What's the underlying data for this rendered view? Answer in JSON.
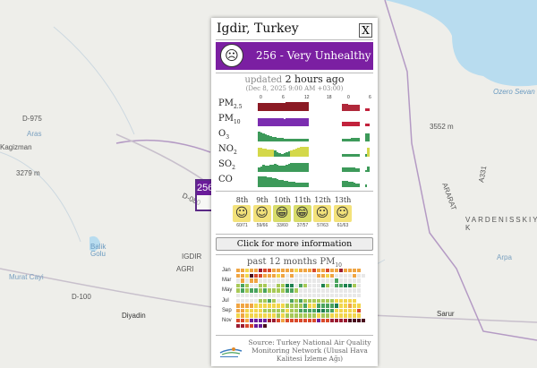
{
  "map": {
    "labels": [
      "Kagizman",
      "3279 m",
      "Balik Golu",
      "IGDIR",
      "AGRI",
      "Murat Cayi",
      "D-100",
      "Diyadin",
      "Ozero Sevan",
      "3552 m",
      "ARARAT",
      "VARDENISSKIY K",
      "Arpa",
      "Sarur",
      "A331",
      "Aras",
      "D-080",
      "D-975"
    ],
    "marker_value": "256",
    "marker_color": "#6a1b9a"
  },
  "popup": {
    "title": "Igdir, Turkey",
    "close_label": "X",
    "aqi_value": "256",
    "aqi_text": "256 - Very Unhealthy",
    "aqi_color": "#7b1fa2",
    "face_icon": "angry-face-icon",
    "updated_prefix": "updated",
    "updated_time": "2 hours ago",
    "updated_date": "(Dec 8, 2025 9:00 AM +03:00)",
    "hour_ticks": [
      "0",
      "6",
      "12",
      "18",
      "0",
      "6"
    ],
    "pollutants": [
      {
        "name": "PM",
        "sub": "2.5",
        "bars": "8888888888888888888888______________77777777__66"
      },
      {
        "name": "PM",
        "sub": "10",
        "bars": "9999999999999999999999______________66666666__66"
      },
      {
        "name": "O",
        "sub": "3",
        "bars": "2222222222222222222222______________22222222__22"
      },
      {
        "name": "NO",
        "sub": "2",
        "bars": "4444444222222244444444______________22222222__24"
      },
      {
        "name": "SO",
        "sub": "2",
        "bars": "2222222222222222222222______________22222222__22"
      },
      {
        "name": "CO",
        "sub": "",
        "bars": "2222222222222222222222______________22222222__2_"
      }
    ],
    "o_heights": {
      "PM2.5": [
        9,
        9,
        9,
        9,
        9,
        9,
        9,
        9,
        9,
        9,
        9,
        9,
        10,
        10,
        10,
        10,
        10,
        10,
        10,
        10,
        10,
        10,
        0,
        0,
        0,
        0,
        0,
        0,
        0,
        0,
        0,
        0,
        0,
        0,
        0,
        0,
        8,
        8,
        8,
        7,
        7,
        7,
        7,
        7,
        0,
        0,
        3,
        3
      ],
      "PM10": [
        9,
        9,
        9,
        9,
        9,
        9,
        9,
        9,
        9,
        9,
        9,
        8,
        9,
        9,
        9,
        9,
        9,
        9,
        9,
        9,
        9,
        9,
        0,
        0,
        0,
        0,
        0,
        0,
        0,
        0,
        0,
        0,
        0,
        0,
        0,
        0,
        5,
        5,
        5,
        5,
        5,
        5,
        5,
        5,
        0,
        0,
        3,
        3
      ],
      "O3": [
        11,
        10,
        9,
        8,
        7,
        6,
        5,
        5,
        4,
        4,
        4,
        3,
        3,
        3,
        3,
        3,
        3,
        3,
        3,
        3,
        3,
        3,
        0,
        0,
        0,
        0,
        0,
        0,
        0,
        0,
        0,
        0,
        0,
        0,
        0,
        0,
        3,
        3,
        3,
        3,
        4,
        4,
        4,
        4,
        0,
        0,
        9,
        9
      ],
      "NO2": [
        10,
        10,
        9,
        9,
        8,
        8,
        8,
        7,
        5,
        4,
        3,
        4,
        5,
        6,
        7,
        8,
        9,
        10,
        11,
        11,
        11,
        11,
        0,
        0,
        0,
        0,
        0,
        0,
        0,
        0,
        0,
        0,
        0,
        0,
        0,
        0,
        3,
        3,
        3,
        3,
        3,
        3,
        3,
        3,
        0,
        0,
        3,
        10
      ],
      "SO2": [
        5,
        6,
        8,
        7,
        7,
        8,
        8,
        9,
        8,
        7,
        7,
        7,
        8,
        9,
        10,
        10,
        10,
        10,
        10,
        10,
        10,
        10,
        0,
        0,
        0,
        0,
        0,
        0,
        0,
        0,
        0,
        0,
        0,
        0,
        0,
        0,
        5,
        5,
        5,
        5,
        5,
        5,
        4,
        4,
        0,
        0,
        2,
        6
      ],
      "CO": [
        12,
        12,
        12,
        12,
        11,
        11,
        10,
        10,
        9,
        8,
        8,
        7,
        7,
        6,
        6,
        6,
        5,
        5,
        5,
        5,
        5,
        5,
        0,
        0,
        0,
        0,
        0,
        0,
        0,
        0,
        0,
        0,
        0,
        0,
        0,
        0,
        7,
        7,
        7,
        6,
        6,
        5,
        4,
        4,
        0,
        0,
        3,
        0
      ]
    },
    "level_colors": {
      "1": "#1b7a4a",
      "2": "#3d9a5a",
      "3": "#8cc063",
      "4": "#d4d84a",
      "5": "#f0c040",
      "6": "#c2223c",
      "7": "#b0283a",
      "8": "#8b1a24",
      "9": "#7b2db0"
    },
    "forecast": [
      {
        "day": "8th",
        "range": "60/71",
        "icon": "smiley-face-icon"
      },
      {
        "day": "9th",
        "range": "59/66",
        "icon": "smiley-face-icon"
      },
      {
        "day": "10th",
        "range": "33/60",
        "icon": "grin-face-icon"
      },
      {
        "day": "11th",
        "range": "37/57",
        "icon": "grin-face-icon"
      },
      {
        "day": "12th",
        "range": "57/63",
        "icon": "smiley-face-icon"
      },
      {
        "day": "13th",
        "range": "61/63",
        "icon": "smiley-face-icon"
      }
    ],
    "more_button": "Click for more information",
    "past_title": "past 12 months PM",
    "past_sub": "10",
    "month_labels": [
      "Jan",
      "Mar",
      "May",
      "Jul",
      "Sep",
      "Nov"
    ],
    "heatmap_rows": [
      "5545576655555455565565575555",
      "55486655545050000055450000500",
      "0505500000000000000000200000",
      "3230033003311023000130221130",
      "3232232333322300000000000000",
      "0000000000000000000000000000",
      "000003323000232333333344444",
      "5555444444433332442222144544",
      "5544443333343322221122444446",
      "4544444443433333334334444444",
      "66599997765666666696677778888",
      "7766998",
      "0000000"
    ],
    "heat_colors": {
      "0": "#e8e8e8",
      "1": "#1e8050",
      "2": "#4aa35e",
      "3": "#a7c957",
      "4": "#f2d64b",
      "5": "#f0a543",
      "6": "#d9492a",
      "7": "#9b1c31",
      "8": "#4a0f1e",
      "9": "#6a1b9a"
    },
    "source": "Source: Turkey National Air Quality Monitoring Network (Ulusal Hava Kalitesi İzleme Ağı)"
  }
}
